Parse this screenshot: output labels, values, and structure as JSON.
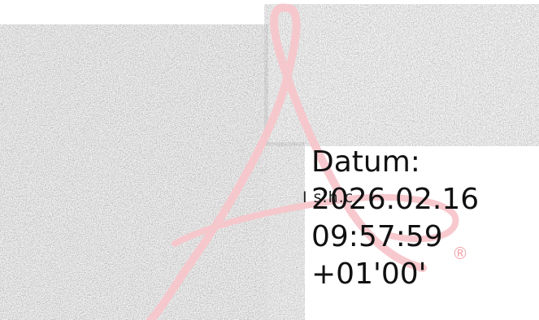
{
  "signature_block": {
    "label": "Datum:",
    "date": "2026.02.16",
    "time": "09:57:59",
    "timezone": "+01'00'",
    "partial_name": "I s.h.c",
    "registered_mark": "®"
  },
  "colors": {
    "logo": "#f7c7cc",
    "text": "#111111",
    "noise_dark": "#1a1a1a",
    "noise_light": "#f2f2f2"
  }
}
